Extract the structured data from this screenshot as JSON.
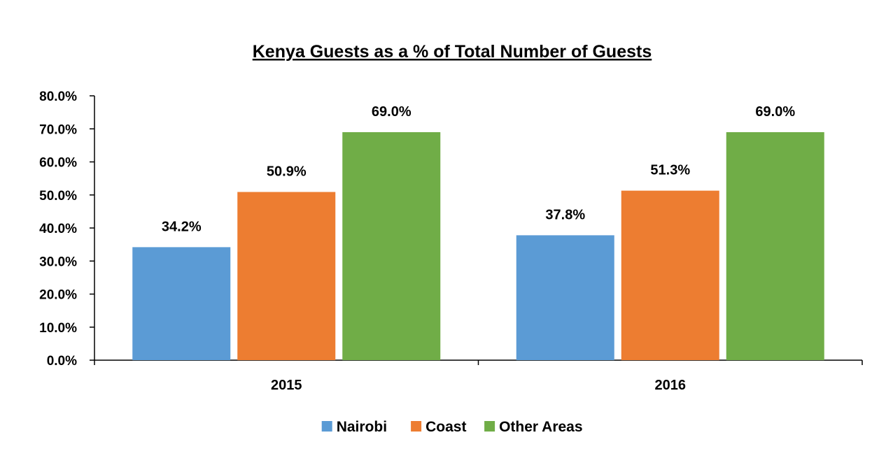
{
  "chart_data": {
    "type": "bar",
    "title": "Kenya Guests as a % of Total Number of Guests",
    "xlabel": "",
    "ylabel": "",
    "ylim": [
      0,
      80
    ],
    "yticks": [
      0,
      10,
      20,
      30,
      40,
      50,
      60,
      70,
      80
    ],
    "ytick_labels": [
      "0.0%",
      "10.0%",
      "20.0%",
      "30.0%",
      "40.0%",
      "50.0%",
      "60.0%",
      "70.0%",
      "80.0%"
    ],
    "categories": [
      "2015",
      "2016"
    ],
    "series": [
      {
        "name": "Nairobi",
        "color": "#5B9BD5",
        "values": [
          34.2,
          37.8
        ],
        "labels": [
          "34.2%",
          "37.8%"
        ]
      },
      {
        "name": "Coast",
        "color": "#ED7D31",
        "values": [
          50.9,
          51.3
        ],
        "labels": [
          "50.9%",
          "51.3%"
        ]
      },
      {
        "name": "Other Areas",
        "color": "#70AD47",
        "values": [
          69.0,
          69.0
        ],
        "labels": [
          "69.0%",
          "69.0%"
        ]
      }
    ],
    "grid": false,
    "legend_position": "bottom-center"
  }
}
